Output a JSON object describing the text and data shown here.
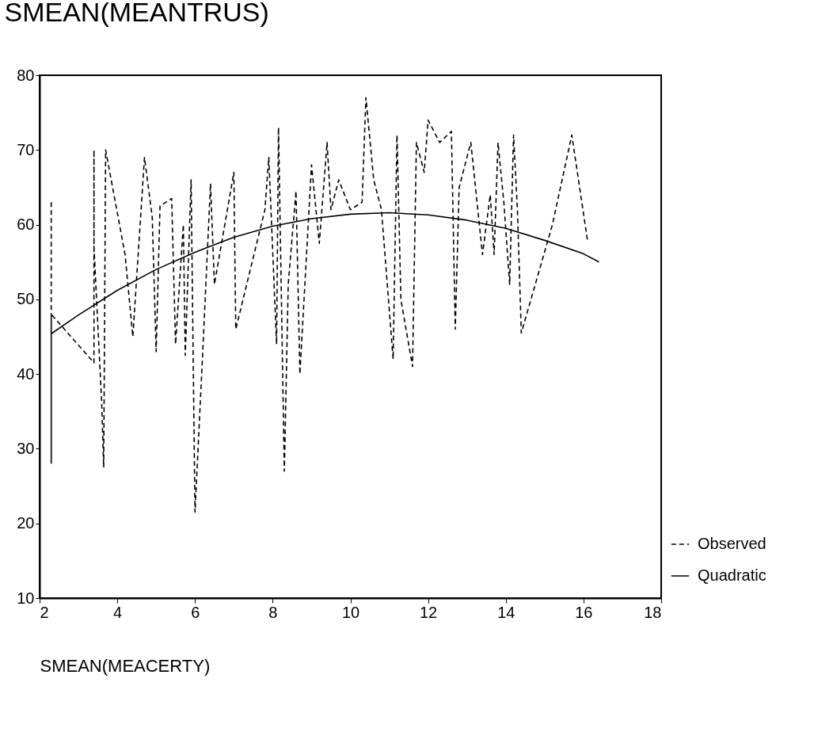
{
  "chart_data": {
    "type": "line",
    "ylabel": "SMEAN(MEANTRUS)",
    "xlabel": "SMEAN(MEACERTY)",
    "xlim": [
      2,
      18
    ],
    "xticks": [
      2,
      4,
      6,
      8,
      10,
      12,
      14,
      16,
      18
    ],
    "ylim": [
      10,
      80
    ],
    "yticks": [
      10,
      20,
      30,
      40,
      50,
      60,
      70,
      80
    ],
    "grid": false,
    "legend": "bottom right",
    "series": [
      {
        "name": "Observed",
        "color": "#000000",
        "line_style": "dashed",
        "x": [
          2.3,
          2.3,
          2.3,
          3.4,
          3.4,
          3.4,
          3.6,
          3.65,
          3.7,
          4.2,
          4.4,
          4.7,
          4.9,
          5.0,
          5.1,
          5.4,
          5.5,
          5.7,
          5.75,
          5.9,
          6.0,
          6.2,
          6.4,
          6.5,
          7.0,
          7.05,
          7.8,
          7.9,
          8.1,
          8.15,
          8.3,
          8.4,
          8.6,
          8.7,
          9.0,
          9.2,
          9.4,
          9.5,
          9.7,
          10.0,
          10.3,
          10.4,
          10.6,
          10.8,
          11.1,
          11.2,
          11.3,
          11.6,
          11.7,
          11.9,
          12.0,
          12.3,
          12.6,
          12.7,
          12.8,
          13.1,
          13.4,
          13.6,
          13.7,
          13.8,
          13.95,
          14.1,
          14.2,
          14.3,
          14.4,
          15.2,
          15.7,
          16.1
        ],
        "values": [
          63,
          28,
          48,
          41.5,
          70,
          57,
          36,
          27.5,
          70,
          56,
          45,
          69,
          61,
          43,
          62.5,
          63.5,
          44,
          60,
          42.5,
          66,
          21.5,
          43,
          65.5,
          52,
          67,
          46,
          62,
          69,
          44,
          73,
          27,
          52,
          64.5,
          40,
          68,
          57.5,
          71,
          62,
          66,
          62,
          63,
          77,
          66,
          62,
          42,
          72,
          50,
          41,
          71,
          67,
          74,
          71,
          72.5,
          46,
          65,
          71,
          56,
          64,
          56,
          71,
          63,
          52,
          72,
          62,
          45.5,
          60,
          72,
          58
        ]
      },
      {
        "name": "Quadratic",
        "color": "#000000",
        "line_style": "solid",
        "x": [
          2.3,
          3,
          4,
          5,
          6,
          7,
          8,
          9,
          10,
          11,
          12,
          13,
          14,
          15,
          16,
          16.4
        ],
        "values": [
          45.4,
          47.9,
          51.2,
          54.0,
          56.3,
          58.3,
          59.8,
          60.8,
          61.4,
          61.6,
          61.3,
          60.6,
          59.5,
          57.9,
          56.1,
          55.0
        ]
      }
    ]
  }
}
